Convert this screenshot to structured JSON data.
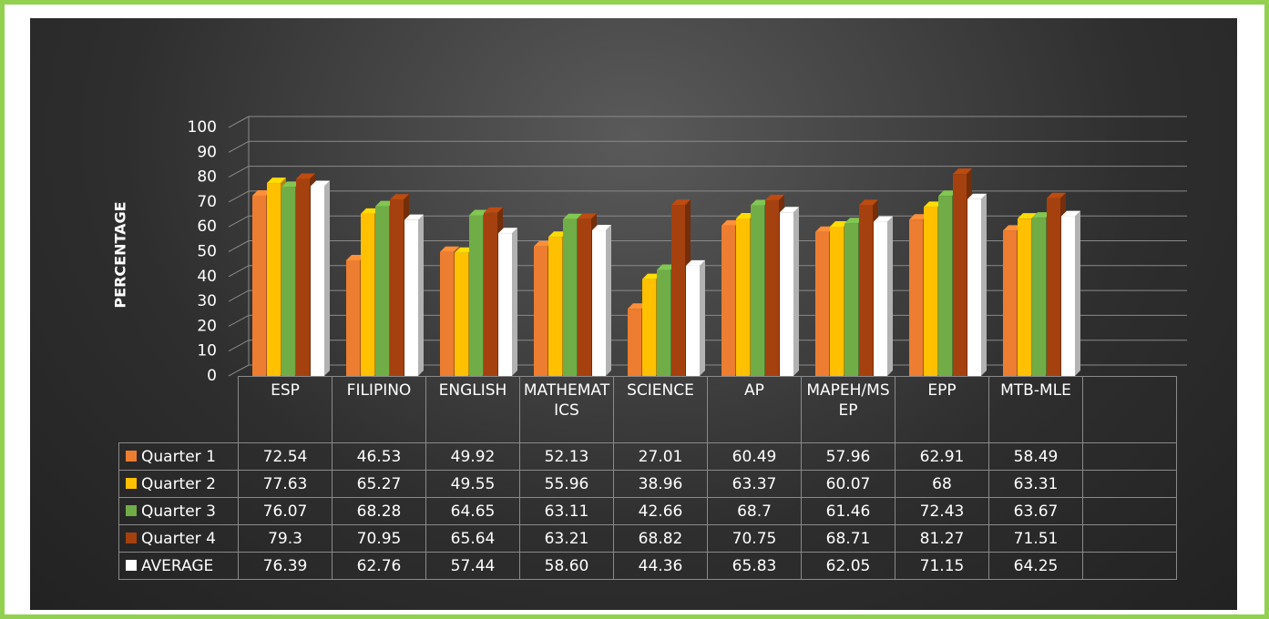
{
  "chart_data": {
    "type": "bar",
    "y_label": "PERCENTAGE",
    "categories": [
      "ESP",
      "FILIPINO",
      "ENGLISH",
      "MATHEMATICS",
      "SCIENCE",
      "AP",
      "MAPEH/MSEP",
      "EPP",
      "MTB-MLE"
    ],
    "series": [
      {
        "name": "Quarter 1",
        "color": "#ed7d31",
        "values": [
          72.54,
          46.53,
          49.92,
          52.13,
          27.01,
          60.49,
          57.96,
          62.91,
          58.49
        ]
      },
      {
        "name": "Quarter 2",
        "color": "#ffc000",
        "values": [
          77.63,
          65.27,
          49.55,
          55.96,
          38.96,
          63.37,
          60.07,
          68,
          63.31
        ]
      },
      {
        "name": "Quarter 3",
        "color": "#70ad47",
        "values": [
          76.07,
          68.28,
          64.65,
          63.11,
          42.66,
          68.7,
          61.46,
          72.43,
          63.67
        ]
      },
      {
        "name": "Quarter 4",
        "color": "#a5410e",
        "values": [
          79.3,
          70.95,
          65.64,
          63.21,
          68.82,
          70.75,
          68.71,
          81.27,
          71.51
        ]
      },
      {
        "name": "AVERAGE",
        "color": "#ffffff",
        "values": [
          76.39,
          62.76,
          57.44,
          58.6,
          44.36,
          65.83,
          62.05,
          71.15,
          64.25
        ],
        "value_labels": [
          "76.39",
          "62.76",
          "57.44",
          "58.60",
          "44.36",
          "65.83",
          "62.05",
          "71.15",
          "64.25"
        ]
      }
    ],
    "ylim": [
      0,
      100
    ],
    "yticks": [
      0,
      10,
      20,
      30,
      40,
      50,
      60,
      70,
      80,
      90,
      100
    ],
    "grid": true
  }
}
